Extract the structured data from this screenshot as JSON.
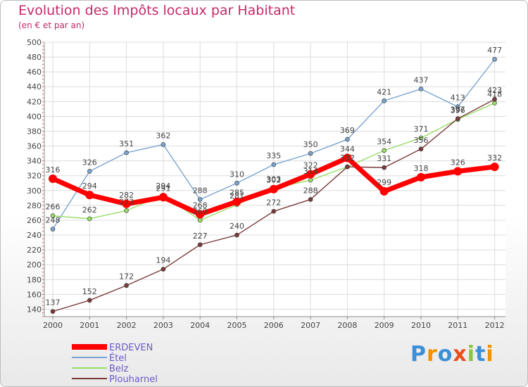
{
  "chart_data": {
    "type": "line",
    "title": "Evolution des Impôts locaux par Habitant",
    "subtitle": "(en € et par an)",
    "xlabel": "",
    "ylabel": "",
    "ylim": [
      130,
      500
    ],
    "yticks": [
      140,
      160,
      180,
      200,
      220,
      240,
      260,
      280,
      300,
      320,
      340,
      360,
      380,
      400,
      420,
      440,
      460,
      480,
      500
    ],
    "categories": [
      "2000",
      "2001",
      "2002",
      "2003",
      "2004",
      "2005",
      "2006",
      "2007",
      "2008",
      "2009",
      "2010",
      "2011",
      "2012"
    ],
    "grid": true,
    "legend_position": "bottom-left",
    "series": [
      {
        "name": "ERDEVEN",
        "color": "#ff0000",
        "values": [
          316,
          294,
          282,
          291,
          268,
          285,
          302,
          322,
          344,
          299,
          318,
          326,
          332
        ],
        "show_labels": [
          true,
          true,
          true,
          true,
          true,
          true,
          true,
          true,
          true,
          true,
          true,
          true,
          true
        ]
      },
      {
        "name": "Étel",
        "color": "#7aa4d0",
        "values": [
          248,
          326,
          351,
          362,
          288,
          310,
          335,
          350,
          369,
          421,
          437,
          413,
          477
        ],
        "show_labels": [
          true,
          true,
          true,
          true,
          true,
          true,
          true,
          true,
          true,
          true,
          true,
          true,
          true
        ]
      },
      {
        "name": "Belz",
        "color": "#99dd66",
        "values": [
          266,
          262,
          273,
          294,
          260,
          281,
          303,
          314,
          332,
          354,
          371,
          396,
          418
        ],
        "show_labels": [
          true,
          true,
          true,
          true,
          true,
          true,
          true,
          true,
          true,
          true,
          true,
          true,
          true
        ]
      },
      {
        "name": "Plouharnel",
        "color": "#7a3b3b",
        "values": [
          137,
          152,
          172,
          194,
          227,
          240,
          272,
          288,
          332,
          331,
          356,
          397,
          423
        ],
        "show_labels": [
          true,
          true,
          true,
          true,
          true,
          true,
          true,
          true,
          true,
          true,
          true,
          true,
          true
        ]
      }
    ]
  },
  "logo": {
    "text": "Proxiti",
    "letters": [
      "P",
      "r",
      "o",
      "x",
      "i",
      "t",
      "i"
    ],
    "colors": [
      "#3c8fd8",
      "#f39200",
      "#3c8fd8",
      "#e94e1b",
      "#8bc53f",
      "#3c8fd8",
      "#f39200"
    ]
  }
}
